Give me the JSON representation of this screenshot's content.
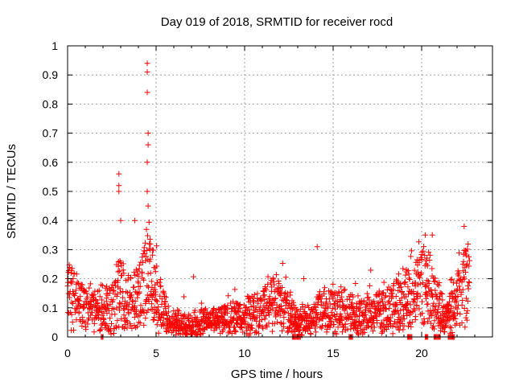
{
  "chart_data": {
    "type": "scatter",
    "title": "Day 019 of 2018, SRMTID for receiver rocd",
    "xlabel": "GPS time / hours",
    "ylabel": "SRMTID / TECUs",
    "xlim": [
      0,
      24
    ],
    "ylim": [
      0,
      1
    ],
    "xticks": [
      0,
      5,
      10,
      15,
      20
    ],
    "xtick_labels": [
      "0",
      "5",
      "10",
      "15",
      "20"
    ],
    "yticks": [
      0,
      0.1,
      0.2,
      0.3,
      0.4,
      0.5,
      0.6,
      0.7,
      0.8,
      0.9,
      1
    ],
    "ytick_labels": [
      "0",
      "0.1",
      "0.2",
      "0.3",
      "0.4",
      "0.5",
      "0.6",
      "0.7",
      "0.8",
      "0.9",
      "1"
    ],
    "grid": true,
    "marker": "+",
    "series_color": "#ff0000",
    "approximate_trend": {
      "x": [
        0,
        0.5,
        1,
        1.5,
        2,
        2.5,
        2.8,
        3,
        3.3,
        3.7,
        4,
        4.3,
        4.5,
        4.7,
        5,
        5.3,
        5.7,
        6,
        6.5,
        7,
        7.5,
        8,
        8.5,
        9,
        9.5,
        10,
        10.5,
        11,
        11.5,
        12,
        12.5,
        13,
        13.5,
        14,
        14.5,
        15,
        15.5,
        16,
        16.5,
        17,
        17.5,
        18,
        18.5,
        19,
        19.5,
        20,
        20.5,
        21,
        21.3,
        21.6,
        22,
        22.3,
        22.6
      ],
      "y": [
        0.15,
        0.13,
        0.11,
        0.09,
        0.1,
        0.1,
        0.14,
        0.16,
        0.12,
        0.12,
        0.14,
        0.18,
        0.25,
        0.2,
        0.15,
        0.1,
        0.06,
        0.05,
        0.04,
        0.04,
        0.05,
        0.05,
        0.05,
        0.06,
        0.07,
        0.07,
        0.08,
        0.09,
        0.13,
        0.11,
        0.08,
        0.05,
        0.06,
        0.07,
        0.1,
        0.1,
        0.09,
        0.08,
        0.07,
        0.08,
        0.09,
        0.09,
        0.12,
        0.12,
        0.14,
        0.18,
        0.15,
        0.1,
        0.07,
        0.08,
        0.13,
        0.16,
        0.2
      ]
    },
    "notable_points": [
      {
        "x": 4.5,
        "y": 0.94
      },
      {
        "x": 4.5,
        "y": 0.91
      },
      {
        "x": 4.5,
        "y": 0.84
      },
      {
        "x": 4.55,
        "y": 0.7
      },
      {
        "x": 4.55,
        "y": 0.66
      },
      {
        "x": 4.5,
        "y": 0.6
      },
      {
        "x": 4.5,
        "y": 0.5
      },
      {
        "x": 4.55,
        "y": 0.45
      },
      {
        "x": 2.9,
        "y": 0.56
      },
      {
        "x": 2.9,
        "y": 0.52
      },
      {
        "x": 2.9,
        "y": 0.5
      },
      {
        "x": 3.0,
        "y": 0.4
      },
      {
        "x": 3.8,
        "y": 0.4
      },
      {
        "x": 14.1,
        "y": 0.31
      },
      {
        "x": 20.2,
        "y": 0.35
      },
      {
        "x": 20.6,
        "y": 0.35
      },
      {
        "x": 22.4,
        "y": 0.38
      }
    ],
    "zero_clusters": [
      {
        "x_start": 1.9,
        "x_end": 2.0
      },
      {
        "x_start": 12.7,
        "x_end": 13.2
      },
      {
        "x_start": 15.9,
        "x_end": 16.1
      },
      {
        "x_start": 19.2,
        "x_end": 19.5
      },
      {
        "x_start": 20.2,
        "x_end": 20.4
      },
      {
        "x_start": 20.7,
        "x_end": 21.1
      },
      {
        "x_start": 21.5,
        "x_end": 21.9
      }
    ]
  }
}
